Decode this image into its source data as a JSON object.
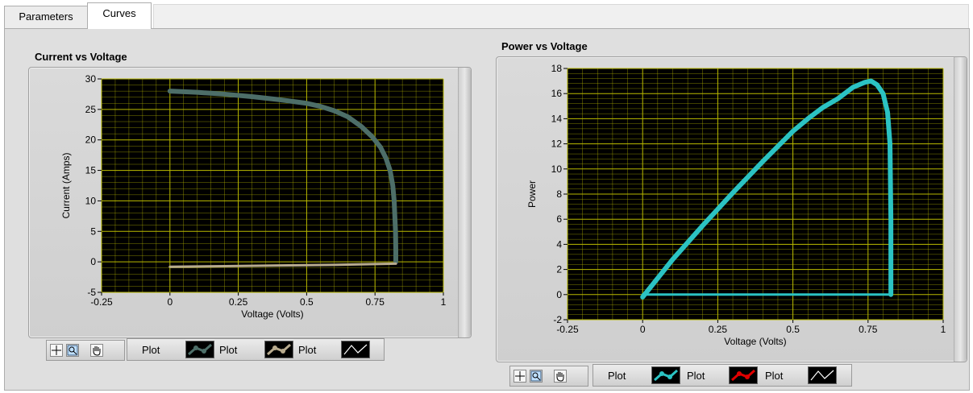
{
  "tabs": [
    {
      "label": "Parameters",
      "active": false
    },
    {
      "label": "Curves",
      "active": true
    }
  ],
  "graphs": {
    "iv": {
      "title": "Current vs Voltage",
      "legend": [
        "Plot",
        "Plot",
        "Plot"
      ],
      "colors": {
        "plot_bg": "#000000",
        "grid": "#b8b800",
        "curve": "#4d6e68",
        "baseline": "#b8ab8e"
      }
    },
    "pv": {
      "title": "Power vs Voltage",
      "legend": [
        "Plot",
        "Plot",
        "Plot"
      ],
      "colors": {
        "plot_bg": "#000000",
        "grid": "#b8b800",
        "curve": "#2bc3c3",
        "baseline": "#2bc3c3"
      }
    }
  },
  "palette_icons": [
    "cursor-move-icon",
    "zoom-icon",
    "pan-hand-icon"
  ],
  "legend_icons": [
    "plot-style-teal-icon",
    "plot-style-tan-icon",
    "plot-style-line-icon",
    "plot-style-cyan-icon",
    "plot-style-red-icon"
  ],
  "chart_data": [
    {
      "type": "line",
      "title": "Current vs Voltage",
      "xlabel": "Voltage (Volts)",
      "ylabel": "Current (Amps)",
      "xlim": [
        -0.25,
        1
      ],
      "ylim": [
        -5,
        30
      ],
      "xticks": [
        -0.25,
        0,
        0.25,
        0.5,
        0.75,
        1
      ],
      "xtick_labels": [
        "-0.25",
        "0",
        "0.25",
        "0.5",
        "0.75",
        "1"
      ],
      "yticks": [
        -5,
        0,
        5,
        10,
        15,
        20,
        25,
        30
      ],
      "ytick_labels": [
        "-5",
        "0",
        "5",
        "10",
        "15",
        "20",
        "25",
        "30"
      ],
      "grid": true,
      "series": [
        {
          "name": "Plot",
          "x": [
            0,
            0.1,
            0.2,
            0.3,
            0.4,
            0.5,
            0.55,
            0.6,
            0.65,
            0.7,
            0.74,
            0.77,
            0.79,
            0.805,
            0.815,
            0.82,
            0.825,
            0.826,
            0.826
          ],
          "y": [
            28,
            27.8,
            27.5,
            27.1,
            26.6,
            26.0,
            25.5,
            24.8,
            23.8,
            22.2,
            20.5,
            18.8,
            17.0,
            15.0,
            12.5,
            10,
            5,
            2,
            0
          ]
        },
        {
          "name": "Plot",
          "x": [
            0,
            0.2,
            0.4,
            0.6,
            0.826
          ],
          "y": [
            -0.8,
            -0.7,
            -0.6,
            -0.5,
            -0.3
          ]
        }
      ]
    },
    {
      "type": "line",
      "title": "Power vs Voltage",
      "xlabel": "Voltage (Volts)",
      "ylabel": "Power",
      "xlim": [
        -0.25,
        1
      ],
      "ylim": [
        -2,
        18
      ],
      "xticks": [
        -0.25,
        0,
        0.25,
        0.5,
        0.75,
        1
      ],
      "xtick_labels": [
        "-0.25",
        "0",
        "0.25",
        "0.5",
        "0.75",
        "1"
      ],
      "yticks": [
        -2,
        0,
        2,
        4,
        6,
        8,
        10,
        12,
        14,
        16,
        18
      ],
      "ytick_labels": [
        "-2",
        "0",
        "2",
        "4",
        "6",
        "8",
        "10",
        "12",
        "14",
        "16",
        "18"
      ],
      "grid": true,
      "series": [
        {
          "name": "Plot",
          "x": [
            0,
            0.1,
            0.2,
            0.3,
            0.4,
            0.5,
            0.55,
            0.6,
            0.65,
            0.7,
            0.74,
            0.76,
            0.78,
            0.8,
            0.815,
            0.823,
            0.826,
            0.826,
            0.826
          ],
          "y": [
            -0.2,
            2.8,
            5.5,
            8.1,
            10.6,
            13.0,
            14.0,
            14.9,
            15.6,
            16.5,
            16.9,
            17.0,
            16.7,
            16.0,
            14.5,
            12.0,
            6.0,
            2.0,
            0
          ]
        },
        {
          "name": "Plot",
          "x": [
            0,
            0.826
          ],
          "y": [
            0,
            0
          ]
        }
      ]
    }
  ]
}
